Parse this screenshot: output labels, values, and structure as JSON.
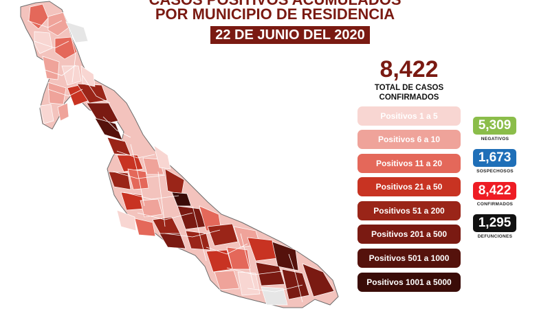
{
  "title": {
    "line1": "CASOS POSITIVOS ACUMULADOS",
    "line2": "POR MUNICIPIO DE RESIDENCIA",
    "date": "22 DE JUNIO DEL 2020"
  },
  "total": {
    "value": "8,422",
    "label_line1": "TOTAL DE CASOS",
    "label_line2": "CONFIRMADOS"
  },
  "legend": [
    {
      "label": "Positivos 1 a 5",
      "color": "#f8d6d2",
      "text_color": "#ffffff"
    },
    {
      "label": "Positivos 6 a 10",
      "color": "#efa39a",
      "text_color": "#ffffff"
    },
    {
      "label": "Positivos 11 a 20",
      "color": "#e4685a",
      "text_color": "#ffffff"
    },
    {
      "label": "Positivos 21 a 50",
      "color": "#c83322",
      "text_color": "#ffffff"
    },
    {
      "label": "Positivos 51 a 200",
      "color": "#9a2518",
      "text_color": "#ffffff"
    },
    {
      "label": "Positivos 201 a 500",
      "color": "#7a1a12",
      "text_color": "#ffffff"
    },
    {
      "label": "Positivos 501 a 1000",
      "color": "#55120c",
      "text_color": "#ffffff"
    },
    {
      "label": "Positivos 1001 a 5000",
      "color": "#3a0c08",
      "text_color": "#ffffff"
    }
  ],
  "stats": [
    {
      "value": "5,309",
      "label": "NEGATIVOS",
      "color": "#8bbd4a"
    },
    {
      "value": "1,673",
      "label": "SOSPECHOSOS",
      "color": "#1f6fb8"
    },
    {
      "value": "8,422",
      "label": "CONFIRMADOS",
      "color": "#ee1c24"
    },
    {
      "value": "1,295",
      "label": "DEFUNCIONES",
      "color": "#111111"
    }
  ],
  "map": {
    "region_name": "Veracruz",
    "outline_color": "#6b6b6b",
    "no_data_color": "#e6e6e6"
  }
}
